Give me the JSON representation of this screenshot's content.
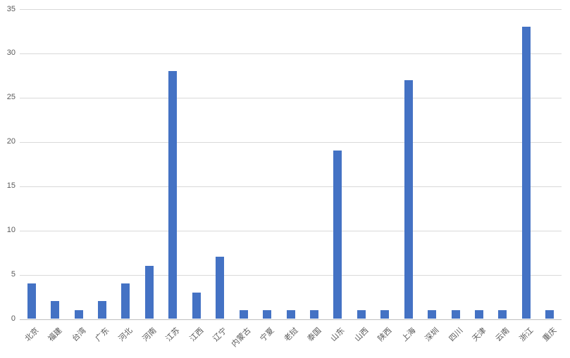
{
  "chart_data": {
    "type": "bar",
    "title": "",
    "xlabel": "",
    "ylabel": "",
    "categories": [
      "北京",
      "福建",
      "台湾",
      "广东",
      "河北",
      "河南",
      "江苏",
      "江西",
      "辽宁",
      "内蒙古",
      "宁夏",
      "老挝",
      "泰国",
      "山东",
      "山西",
      "陕西",
      "上海",
      "深圳",
      "四川",
      "天津",
      "云南",
      "浙江",
      "重庆"
    ],
    "values": [
      4,
      2,
      1,
      2,
      4,
      6,
      28,
      3,
      7,
      1,
      1,
      1,
      1,
      19,
      1,
      1,
      27,
      1,
      1,
      1,
      1,
      33,
      1
    ],
    "ylim": [
      0,
      35
    ],
    "yticks": [
      0,
      5,
      10,
      15,
      20,
      25,
      30,
      35
    ],
    "grid": "horizontal",
    "legend": "none",
    "colors": {
      "bar": "#4472C4",
      "gridline": "#d9d9d9",
      "axis_line": "#bfbfbf",
      "tick_label": "#595959",
      "background": "#ffffff"
    }
  }
}
